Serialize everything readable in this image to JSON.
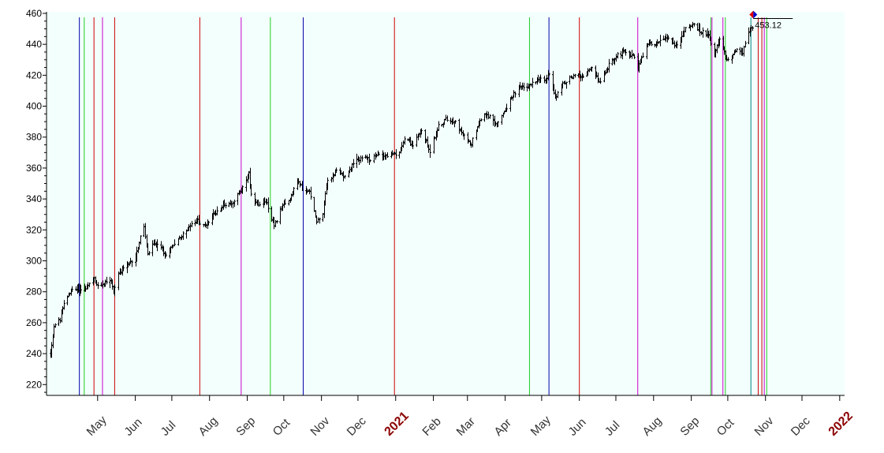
{
  "chart_data": {
    "type": "ohlc",
    "xlabel": "",
    "ylabel": "",
    "ylim": [
      213,
      461
    ],
    "xlim": [
      "2020-03-20",
      "2022-01-05"
    ],
    "y_ticks": [
      220,
      240,
      260,
      280,
      300,
      320,
      340,
      360,
      380,
      400,
      420,
      440,
      460
    ],
    "x_ticks": [
      {
        "date": "2020-05-01",
        "label": "May",
        "year": false
      },
      {
        "date": "2020-06-01",
        "label": "Jun",
        "year": false
      },
      {
        "date": "2020-07-01",
        "label": "Jul",
        "year": false
      },
      {
        "date": "2020-08-01",
        "label": "Aug",
        "year": false
      },
      {
        "date": "2020-09-01",
        "label": "Sep",
        "year": false
      },
      {
        "date": "2020-10-01",
        "label": "Oct",
        "year": false
      },
      {
        "date": "2020-11-01",
        "label": "Nov",
        "year": false
      },
      {
        "date": "2020-12-01",
        "label": "Dec",
        "year": false
      },
      {
        "date": "2021-01-01",
        "label": "2021",
        "year": true
      },
      {
        "date": "2021-02-01",
        "label": "Feb",
        "year": false
      },
      {
        "date": "2021-03-01",
        "label": "Mar",
        "year": false
      },
      {
        "date": "2021-04-01",
        "label": "Apr",
        "year": false
      },
      {
        "date": "2021-05-01",
        "label": "May",
        "year": false
      },
      {
        "date": "2021-06-01",
        "label": "Jun",
        "year": false
      },
      {
        "date": "2021-07-01",
        "label": "Jul",
        "year": false
      },
      {
        "date": "2021-08-01",
        "label": "Aug",
        "year": false
      },
      {
        "date": "2021-09-01",
        "label": "Sep",
        "year": false
      },
      {
        "date": "2021-10-01",
        "label": "Oct",
        "year": false
      },
      {
        "date": "2021-11-01",
        "label": "Nov",
        "year": false
      },
      {
        "date": "2021-12-01",
        "label": "Dec",
        "year": false
      },
      {
        "date": "2022-01-01",
        "label": "2022",
        "year": true
      }
    ],
    "last_price_label": "453.12",
    "last_price": 453.12,
    "last_date": "2021-10-22",
    "grid": false,
    "colors": {
      "plot_background": "#f3fffd",
      "bars": "#000000",
      "red": "#cc0000",
      "green": "#22cc22",
      "blue": "#0000aa",
      "magenta": "#cc00cc",
      "teal": "#008080",
      "year_label": "#8b0000",
      "marker_red": "#dd0000",
      "marker_blue": "#0000cc"
    },
    "vertical_lines": [
      {
        "date": "2020-04-16",
        "color": "blue"
      },
      {
        "date": "2020-04-20",
        "color": "green"
      },
      {
        "date": "2020-04-28",
        "color": "red"
      },
      {
        "date": "2020-05-05",
        "color": "magenta"
      },
      {
        "date": "2020-05-15",
        "color": "red"
      },
      {
        "date": "2020-07-24",
        "color": "red"
      },
      {
        "date": "2020-08-27",
        "color": "magenta"
      },
      {
        "date": "2020-09-20",
        "color": "green"
      },
      {
        "date": "2020-10-17",
        "color": "blue"
      },
      {
        "date": "2020-12-31",
        "color": "red"
      },
      {
        "date": "2021-04-21",
        "color": "green"
      },
      {
        "date": "2021-05-07",
        "color": "blue"
      },
      {
        "date": "2021-06-01",
        "color": "red"
      },
      {
        "date": "2021-07-19",
        "color": "magenta"
      },
      {
        "date": "2021-09-17",
        "color": "green"
      },
      {
        "date": "2021-09-18",
        "color": "magenta"
      },
      {
        "date": "2021-09-27",
        "color": "magenta"
      },
      {
        "date": "2021-09-29",
        "color": "green"
      },
      {
        "date": "2021-10-20",
        "color": "teal"
      },
      {
        "date": "2021-10-26",
        "color": "red"
      },
      {
        "date": "2021-10-29",
        "color": "red"
      },
      {
        "date": "2021-10-31",
        "color": "magenta"
      },
      {
        "date": "2021-11-02",
        "color": "green"
      }
    ],
    "price_path": [
      [
        "2020-03-23",
        240
      ],
      [
        "2020-03-26",
        258
      ],
      [
        "2020-03-31",
        262
      ],
      [
        "2020-04-03",
        272
      ],
      [
        "2020-04-08",
        280
      ],
      [
        "2020-04-14",
        282
      ],
      [
        "2020-04-21",
        282
      ],
      [
        "2020-04-28",
        288
      ],
      [
        "2020-05-01",
        283
      ],
      [
        "2020-05-06",
        286
      ],
      [
        "2020-05-11",
        288
      ],
      [
        "2020-05-14",
        280
      ],
      [
        "2020-05-18",
        292
      ],
      [
        "2020-05-26",
        297
      ],
      [
        "2020-06-01",
        303
      ],
      [
        "2020-06-05",
        315
      ],
      [
        "2020-06-08",
        322
      ],
      [
        "2020-06-11",
        303
      ],
      [
        "2020-06-16",
        312
      ],
      [
        "2020-06-22",
        308
      ],
      [
        "2020-06-26",
        303
      ],
      [
        "2020-07-02",
        311
      ],
      [
        "2020-07-08",
        315
      ],
      [
        "2020-07-15",
        322
      ],
      [
        "2020-07-22",
        326
      ],
      [
        "2020-07-28",
        322
      ],
      [
        "2020-08-04",
        330
      ],
      [
        "2020-08-12",
        336
      ],
      [
        "2020-08-20",
        338
      ],
      [
        "2020-08-26",
        345
      ],
      [
        "2020-09-02",
        356
      ],
      [
        "2020-09-04",
        342
      ],
      [
        "2020-09-10",
        335
      ],
      [
        "2020-09-16",
        340
      ],
      [
        "2020-09-23",
        322
      ],
      [
        "2020-09-28",
        333
      ],
      [
        "2020-10-05",
        339
      ],
      [
        "2020-10-12",
        352
      ],
      [
        "2020-10-16",
        347
      ],
      [
        "2020-10-22",
        344
      ],
      [
        "2020-10-28",
        326
      ],
      [
        "2020-11-02",
        331
      ],
      [
        "2020-11-05",
        350
      ],
      [
        "2020-11-09",
        354
      ],
      [
        "2020-11-13",
        358
      ],
      [
        "2020-11-20",
        355
      ],
      [
        "2020-11-27",
        363
      ],
      [
        "2020-12-04",
        367
      ],
      [
        "2020-12-11",
        365
      ],
      [
        "2020-12-18",
        369
      ],
      [
        "2020-12-24",
        368
      ],
      [
        "2021-01-04",
        369
      ],
      [
        "2021-01-08",
        380
      ],
      [
        "2021-01-15",
        375
      ],
      [
        "2021-01-22",
        384
      ],
      [
        "2021-01-29",
        371
      ],
      [
        "2021-02-05",
        387
      ],
      [
        "2021-02-12",
        392
      ],
      [
        "2021-02-19",
        390
      ],
      [
        "2021-02-25",
        381
      ],
      [
        "2021-03-04",
        376
      ],
      [
        "2021-03-10",
        390
      ],
      [
        "2021-03-16",
        396
      ],
      [
        "2021-03-24",
        388
      ],
      [
        "2021-03-31",
        396
      ],
      [
        "2021-04-06",
        406
      ],
      [
        "2021-04-13",
        412
      ],
      [
        "2021-04-20",
        413
      ],
      [
        "2021-04-28",
        418
      ],
      [
        "2021-05-04",
        416
      ],
      [
        "2021-05-07",
        422
      ],
      [
        "2021-05-12",
        406
      ],
      [
        "2021-05-18",
        414
      ],
      [
        "2021-05-26",
        419
      ],
      [
        "2021-06-04",
        420
      ],
      [
        "2021-06-11",
        424
      ],
      [
        "2021-06-18",
        415
      ],
      [
        "2021-06-25",
        427
      ],
      [
        "2021-07-02",
        433
      ],
      [
        "2021-07-09",
        435
      ],
      [
        "2021-07-16",
        432
      ],
      [
        "2021-07-19",
        424
      ],
      [
        "2021-07-26",
        440
      ],
      [
        "2021-08-03",
        441
      ],
      [
        "2021-08-12",
        445
      ],
      [
        "2021-08-19",
        439
      ],
      [
        "2021-08-27",
        450
      ],
      [
        "2021-09-02",
        453
      ],
      [
        "2021-09-09",
        448
      ],
      [
        "2021-09-15",
        447
      ],
      [
        "2021-09-20",
        433
      ],
      [
        "2021-09-24",
        443
      ],
      [
        "2021-09-30",
        430
      ],
      [
        "2021-10-04",
        433
      ],
      [
        "2021-10-08",
        437
      ],
      [
        "2021-10-13",
        435
      ],
      [
        "2021-10-18",
        447
      ],
      [
        "2021-10-22",
        453
      ]
    ]
  }
}
